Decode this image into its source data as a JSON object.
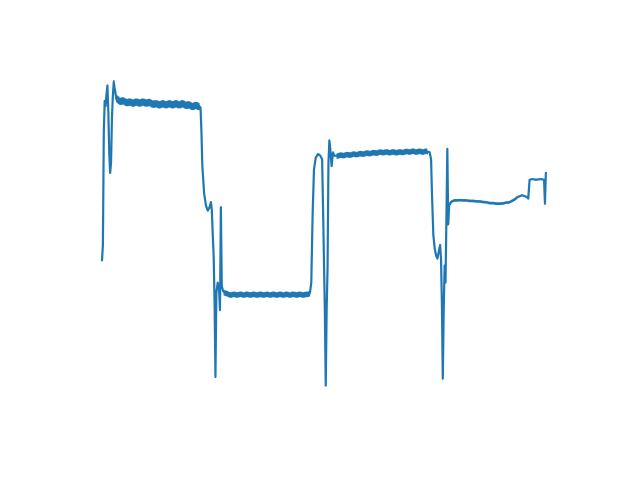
{
  "chart_data": {
    "type": "line",
    "title": "",
    "xlabel": "",
    "ylabel": "",
    "axes_visible": false,
    "grid": false,
    "xlim": [
      0,
      100
    ],
    "ylim": [
      0,
      100
    ],
    "series": [
      {
        "color": "#1f77b4",
        "line_width": 2.2,
        "noise_band": [
          {
            "x_start": 2.5,
            "x_end": 21.5,
            "amplitude": 1.2
          },
          {
            "x_start": 27.0,
            "x_end": 46.0,
            "amplitude": 0.9
          },
          {
            "x_start": 52.0,
            "x_end": 72.0,
            "amplitude": 0.9
          },
          {
            "x_start": 77.0,
            "x_end": 92.0,
            "amplitude": 0.4
          }
        ],
        "points": [
          [
            0.0,
            44.5
          ],
          [
            0.2,
            49.0
          ],
          [
            0.4,
            82.0
          ],
          [
            0.6,
            91.0
          ],
          [
            0.8,
            89.5
          ],
          [
            1.0,
            93.0
          ],
          [
            1.2,
            95.5
          ],
          [
            1.4,
            88.0
          ],
          [
            1.6,
            76.0
          ],
          [
            1.8,
            70.0
          ],
          [
            2.0,
            73.0
          ],
          [
            2.2,
            86.0
          ],
          [
            2.4,
            92.5
          ],
          [
            2.6,
            96.5
          ],
          [
            2.8,
            94.5
          ],
          [
            3.2,
            91.5
          ],
          [
            4.0,
            91.0
          ],
          [
            6.0,
            90.5
          ],
          [
            8.0,
            90.5
          ],
          [
            10.0,
            90.5
          ],
          [
            12.0,
            90.0
          ],
          [
            14.0,
            90.0
          ],
          [
            16.0,
            90.0
          ],
          [
            18.0,
            90.0
          ],
          [
            20.0,
            89.5
          ],
          [
            21.5,
            89.5
          ],
          [
            21.8,
            89.0
          ],
          [
            22.0,
            82.0
          ],
          [
            22.2,
            72.0
          ],
          [
            22.6,
            64.0
          ],
          [
            23.0,
            60.5
          ],
          [
            23.4,
            59.0
          ],
          [
            23.8,
            60.0
          ],
          [
            24.1,
            61.5
          ],
          [
            24.3,
            59.0
          ],
          [
            24.5,
            52.0
          ],
          [
            24.7,
            46.0
          ],
          [
            24.9,
            33.0
          ],
          [
            25.1,
            10.5
          ],
          [
            25.3,
            35.0
          ],
          [
            25.6,
            38.0
          ],
          [
            25.9,
            36.0
          ],
          [
            26.1,
            30.0
          ],
          [
            26.3,
            60.0
          ],
          [
            26.5,
            37.0
          ],
          [
            26.8,
            35.5
          ],
          [
            27.2,
            35.0
          ],
          [
            28.0,
            34.5
          ],
          [
            30.0,
            34.5
          ],
          [
            34.0,
            34.5
          ],
          [
            38.0,
            34.5
          ],
          [
            42.0,
            34.5
          ],
          [
            44.0,
            34.5
          ],
          [
            45.5,
            34.5
          ],
          [
            46.0,
            35.0
          ],
          [
            46.3,
            38.0
          ],
          [
            46.6,
            58.0
          ],
          [
            46.9,
            71.0
          ],
          [
            47.3,
            74.5
          ],
          [
            47.8,
            75.5
          ],
          [
            48.3,
            75.0
          ],
          [
            48.7,
            74.0
          ],
          [
            48.9,
            60.0
          ],
          [
            49.1,
            45.0
          ],
          [
            49.3,
            30.0
          ],
          [
            49.5,
            8.0
          ],
          [
            49.7,
            30.0
          ],
          [
            49.9,
            42.0
          ],
          [
            50.1,
            73.0
          ],
          [
            50.3,
            79.5
          ],
          [
            50.5,
            77.0
          ],
          [
            50.8,
            72.0
          ],
          [
            51.1,
            76.0
          ],
          [
            51.4,
            75.0
          ],
          [
            52.0,
            75.0
          ],
          [
            54.0,
            75.2
          ],
          [
            56.0,
            75.4
          ],
          [
            58.0,
            75.6
          ],
          [
            60.0,
            75.8
          ],
          [
            62.0,
            76.0
          ],
          [
            64.0,
            76.0
          ],
          [
            66.0,
            76.0
          ],
          [
            68.0,
            76.2
          ],
          [
            70.0,
            76.2
          ],
          [
            72.0,
            76.2
          ],
          [
            72.5,
            76.0
          ],
          [
            72.8,
            74.0
          ],
          [
            73.0,
            64.0
          ],
          [
            73.3,
            52.0
          ],
          [
            73.6,
            48.0
          ],
          [
            73.9,
            46.0
          ],
          [
            74.2,
            45.0
          ],
          [
            74.5,
            47.0
          ],
          [
            74.8,
            49.0
          ],
          [
            75.0,
            45.0
          ],
          [
            75.2,
            32.0
          ],
          [
            75.4,
            10.0
          ],
          [
            75.6,
            30.0
          ],
          [
            75.8,
            43.0
          ],
          [
            76.0,
            38.0
          ],
          [
            76.2,
            57.0
          ],
          [
            76.4,
            77.0
          ],
          [
            76.6,
            55.0
          ],
          [
            76.8,
            60.5
          ],
          [
            77.2,
            61.5
          ],
          [
            78.0,
            62.0
          ],
          [
            80.0,
            62.0
          ],
          [
            82.0,
            61.8
          ],
          [
            84.0,
            61.6
          ],
          [
            86.0,
            61.2
          ],
          [
            88.0,
            61.0
          ],
          [
            89.0,
            61.2
          ],
          [
            90.0,
            61.4
          ],
          [
            91.0,
            62.0
          ],
          [
            92.0,
            63.0
          ],
          [
            93.0,
            63.5
          ],
          [
            93.5,
            63.2
          ],
          [
            94.0,
            63.0
          ],
          [
            94.3,
            62.5
          ],
          [
            94.6,
            68.0
          ],
          [
            95.2,
            68.2
          ],
          [
            96.0,
            68.0
          ],
          [
            97.0,
            68.2
          ],
          [
            97.8,
            68.0
          ],
          [
            98.0,
            61.0
          ],
          [
            98.2,
            70.0
          ]
        ]
      }
    ]
  }
}
